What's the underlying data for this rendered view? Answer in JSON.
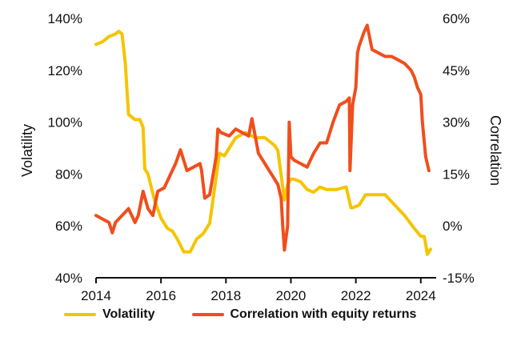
{
  "chart_data": {
    "type": "line",
    "title": "",
    "xlabel": "",
    "ylabel": "Volatility",
    "y2label": "Correlation",
    "xlim": [
      2014,
      2024.35
    ],
    "ylim": [
      40,
      140
    ],
    "y2lim": [
      -15,
      60
    ],
    "x_ticks": [
      2014,
      2016,
      2018,
      2020,
      2022,
      2024
    ],
    "x_tick_labels": [
      "2014",
      "2016",
      "2018",
      "2020",
      "2022",
      "2024"
    ],
    "y_ticks": [
      40,
      60,
      80,
      100,
      120,
      140
    ],
    "y_tick_labels": [
      "40%",
      "60%",
      "80%",
      "100%",
      "120%",
      "140%"
    ],
    "y2_ticks": [
      -15,
      0,
      15,
      30,
      45,
      60
    ],
    "y2_tick_labels": [
      "-15%",
      "0%",
      "15%",
      "30%",
      "45%",
      "60%"
    ],
    "grid": false,
    "legend_position": "bottom-left",
    "series": [
      {
        "name": "Volatility",
        "axis": "left",
        "color": "#f5c400",
        "x": [
          2014.0,
          2014.2,
          2014.4,
          2014.6,
          2014.7,
          2014.8,
          2014.9,
          2015.0,
          2015.2,
          2015.35,
          2015.45,
          2015.5,
          2015.6,
          2015.8,
          2016.0,
          2016.2,
          2016.35,
          2016.5,
          2016.7,
          2016.9,
          2017.1,
          2017.3,
          2017.45,
          2017.5,
          2017.6,
          2017.8,
          2017.95,
          2018.1,
          2018.3,
          2018.6,
          2018.9,
          2019.2,
          2019.5,
          2019.6,
          2019.75,
          2019.8,
          2019.9,
          2020.0,
          2020.1,
          2020.3,
          2020.5,
          2020.7,
          2020.9,
          2021.1,
          2021.4,
          2021.7,
          2021.85,
          2021.9,
          2022.1,
          2022.3,
          2022.6,
          2022.9,
          2023.2,
          2023.5,
          2023.8,
          2024.0,
          2024.1,
          2024.15,
          2024.2,
          2024.3
        ],
        "y": [
          130,
          131,
          133,
          134,
          135,
          134,
          123,
          103,
          101,
          101,
          98,
          82,
          80,
          70,
          63,
          59,
          58,
          55,
          50,
          50,
          55,
          57,
          60,
          61,
          70,
          88,
          87,
          90,
          94,
          96,
          94,
          94,
          91,
          89,
          75,
          70,
          76,
          78,
          78,
          77,
          74,
          73,
          75,
          74,
          74,
          75,
          67,
          67,
          68,
          72,
          72,
          72,
          68,
          64,
          59,
          56,
          56,
          53,
          49,
          51
        ]
      },
      {
        "name": "Correlation with equity returns",
        "axis": "right",
        "color": "#f04e1d",
        "x": [
          2014.0,
          2014.2,
          2014.4,
          2014.5,
          2014.6,
          2014.8,
          2015.0,
          2015.2,
          2015.3,
          2015.45,
          2015.6,
          2015.75,
          2015.9,
          2016.1,
          2016.3,
          2016.45,
          2016.6,
          2016.8,
          2017.0,
          2017.2,
          2017.25,
          2017.35,
          2017.5,
          2017.7,
          2017.75,
          2017.85,
          2018.1,
          2018.3,
          2018.5,
          2018.7,
          2018.8,
          2019.0,
          2019.2,
          2019.4,
          2019.6,
          2019.7,
          2019.75,
          2019.8,
          2019.9,
          2019.95,
          2020.0,
          2020.1,
          2020.3,
          2020.5,
          2020.7,
          2020.9,
          2021.1,
          2021.3,
          2021.5,
          2021.7,
          2021.8,
          2021.82,
          2021.9,
          2022.0,
          2022.05,
          2022.1,
          2022.25,
          2022.35,
          2022.5,
          2022.7,
          2022.9,
          2023.1,
          2023.3,
          2023.5,
          2023.7,
          2023.8,
          2023.9,
          2024.0,
          2024.05,
          2024.15,
          2024.25
        ],
        "y": [
          3,
          2,
          1,
          -2,
          1,
          3,
          5,
          1,
          3,
          10,
          5,
          3,
          10,
          11,
          15,
          18,
          22,
          16,
          17,
          18,
          16,
          8,
          9,
          20,
          28,
          27,
          26,
          28,
          27,
          26,
          31,
          21,
          18,
          15,
          12,
          8,
          0,
          -7,
          0,
          30,
          20,
          19,
          18,
          17,
          21,
          24,
          24,
          30,
          35,
          36,
          37,
          16,
          35,
          40,
          50,
          52,
          56,
          58,
          51,
          50,
          49,
          49,
          48,
          47,
          45,
          43,
          40,
          38,
          30,
          20,
          16
        ]
      }
    ]
  }
}
